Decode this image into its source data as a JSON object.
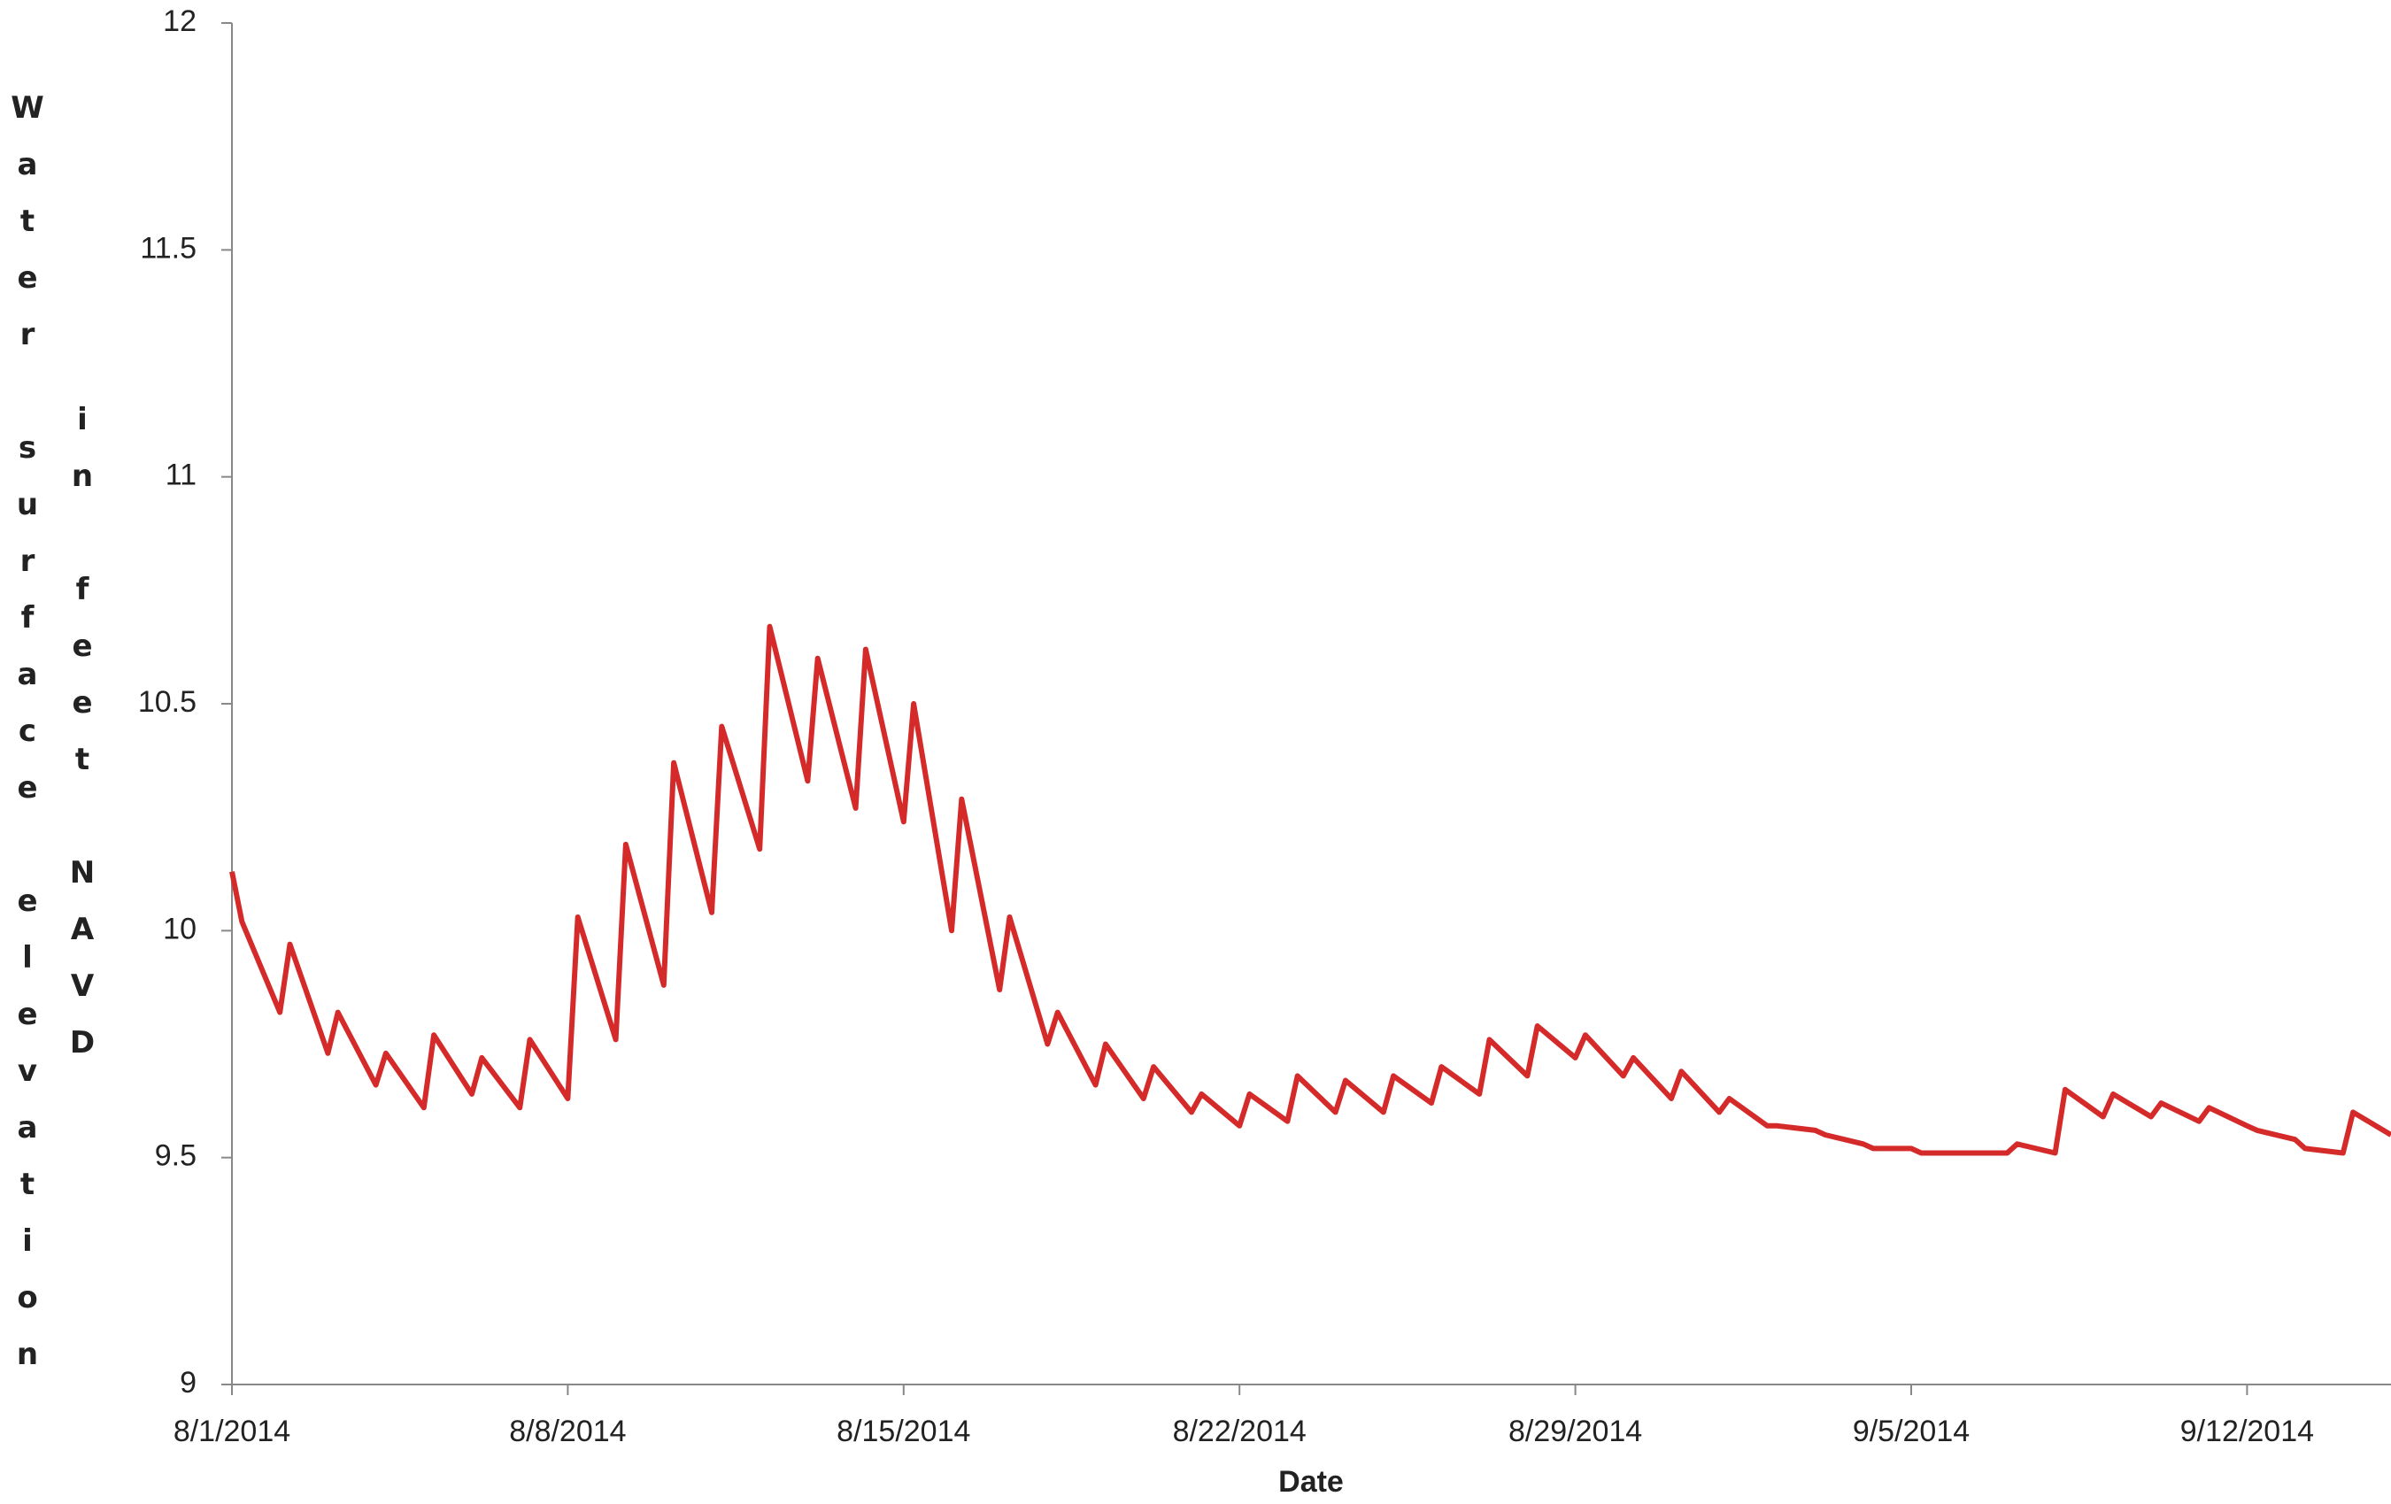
{
  "chart_data": {
    "type": "line",
    "x_label": "Date",
    "y_label": "Water surface elevation in feet NAVD",
    "x": [
      "2014-08-01T00:00",
      "2014-08-01T05:00",
      "2014-08-02T00:00",
      "2014-08-02T05:00",
      "2014-08-03T00:00",
      "2014-08-03T05:00",
      "2014-08-04T00:00",
      "2014-08-04T05:00",
      "2014-08-05T00:00",
      "2014-08-05T05:00",
      "2014-08-06T00:00",
      "2014-08-06T05:00",
      "2014-08-07T00:00",
      "2014-08-07T05:00",
      "2014-08-08T00:00",
      "2014-08-08T05:00",
      "2014-08-09T00:00",
      "2014-08-09T05:00",
      "2014-08-10T00:00",
      "2014-08-10T05:00",
      "2014-08-11T00:00",
      "2014-08-11T05:00",
      "2014-08-12T00:00",
      "2014-08-12T05:00",
      "2014-08-13T00:00",
      "2014-08-13T05:00",
      "2014-08-14T00:00",
      "2014-08-14T05:00",
      "2014-08-15T00:00",
      "2014-08-15T05:00",
      "2014-08-16T00:00",
      "2014-08-16T05:00",
      "2014-08-17T00:00",
      "2014-08-17T05:00",
      "2014-08-18T00:00",
      "2014-08-18T05:00",
      "2014-08-19T00:00",
      "2014-08-19T05:00",
      "2014-08-20T00:00",
      "2014-08-20T05:00",
      "2014-08-21T00:00",
      "2014-08-21T05:00",
      "2014-08-22T00:00",
      "2014-08-22T05:00",
      "2014-08-23T00:00",
      "2014-08-23T05:00",
      "2014-08-24T00:00",
      "2014-08-24T05:00",
      "2014-08-25T00:00",
      "2014-08-25T05:00",
      "2014-08-26T00:00",
      "2014-08-26T05:00",
      "2014-08-27T00:00",
      "2014-08-27T05:00",
      "2014-08-28T00:00",
      "2014-08-28T05:00",
      "2014-08-29T00:00",
      "2014-08-29T05:00",
      "2014-08-30T00:00",
      "2014-08-30T05:00",
      "2014-08-31T00:00",
      "2014-08-31T05:00",
      "2014-09-01T00:00",
      "2014-09-01T05:00",
      "2014-09-02T00:00",
      "2014-09-02T05:00",
      "2014-09-03T00:00",
      "2014-09-03T05:00",
      "2014-09-04T00:00",
      "2014-09-04T05:00",
      "2014-09-05T00:00",
      "2014-09-05T05:00",
      "2014-09-06T00:00",
      "2014-09-06T05:00",
      "2014-09-07T00:00",
      "2014-09-07T05:00",
      "2014-09-08T00:00",
      "2014-09-08T05:00",
      "2014-09-09T00:00",
      "2014-09-09T05:00",
      "2014-09-10T00:00",
      "2014-09-10T05:00",
      "2014-09-11T00:00",
      "2014-09-11T05:00",
      "2014-09-12T00:00",
      "2014-09-12T05:00",
      "2014-09-13T00:00",
      "2014-09-13T05:00",
      "2014-09-14T00:00",
      "2014-09-14T05:00",
      "2014-09-15T00:00"
    ],
    "series": [
      {
        "color": "#d42a2a",
        "values": [
          10.13,
          10.02,
          9.82,
          9.97,
          9.73,
          9.82,
          9.66,
          9.73,
          9.61,
          9.77,
          9.64,
          9.72,
          9.61,
          9.76,
          9.63,
          10.03,
          9.76,
          10.19,
          9.88,
          10.37,
          10.04,
          10.45,
          10.18,
          10.67,
          10.33,
          10.6,
          10.27,
          10.62,
          10.24,
          10.5,
          10.0,
          10.29,
          9.87,
          10.03,
          9.75,
          9.82,
          9.66,
          9.75,
          9.63,
          9.7,
          9.6,
          9.64,
          9.57,
          9.64,
          9.58,
          9.68,
          9.6,
          9.67,
          9.6,
          9.68,
          9.62,
          9.7,
          9.64,
          9.76,
          9.68,
          9.79,
          9.72,
          9.77,
          9.68,
          9.72,
          9.63,
          9.69,
          9.6,
          9.63,
          9.57,
          9.57,
          9.56,
          9.55,
          9.53,
          9.52,
          9.52,
          9.51,
          9.51,
          9.51,
          9.51,
          9.53,
          9.51,
          9.65,
          9.59,
          9.64,
          9.59,
          9.62,
          9.58,
          9.61,
          9.57,
          9.56,
          9.54,
          9.52,
          9.51,
          9.6,
          9.55
        ]
      }
    ],
    "xlim": [
      "2014-08-01T00:00",
      "2014-09-15T00:00"
    ],
    "xticks": [
      {
        "value": "2014-08-01T00:00",
        "label": "8/1/2014"
      },
      {
        "value": "2014-08-08T00:00",
        "label": "8/8/2014"
      },
      {
        "value": "2014-08-15T00:00",
        "label": "8/15/2014"
      },
      {
        "value": "2014-08-22T00:00",
        "label": "8/22/2014"
      },
      {
        "value": "2014-08-29T00:00",
        "label": "8/29/2014"
      },
      {
        "value": "2014-09-05T00:00",
        "label": "9/5/2014"
      },
      {
        "value": "2014-09-12T00:00",
        "label": "9/12/2014"
      }
    ],
    "ylim": [
      9,
      12
    ],
    "yticks": [
      9,
      9.5,
      10,
      10.5,
      11,
      11.5,
      12
    ],
    "grid": false
  }
}
